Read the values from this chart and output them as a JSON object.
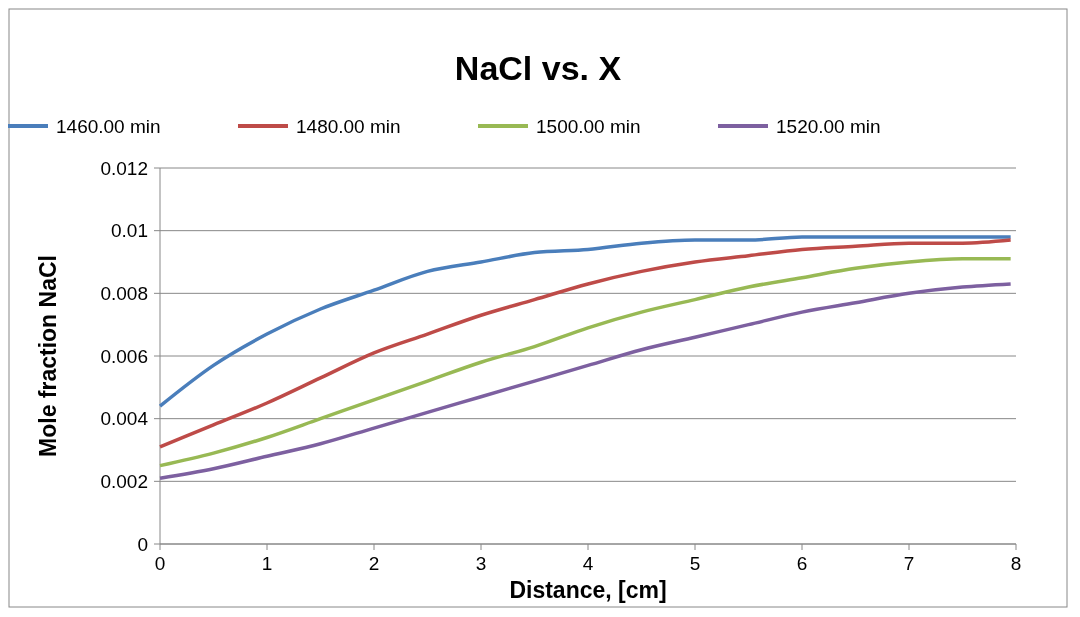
{
  "chart_data": {
    "type": "line",
    "title": "NaCl vs. X",
    "xlabel": "Distance, [cm]",
    "ylabel": "Mole fraction NaCl",
    "x": [
      0,
      0.5,
      1,
      1.5,
      2,
      2.5,
      3,
      3.5,
      4,
      4.5,
      5,
      5.5,
      6,
      6.5,
      7,
      7.5,
      7.95
    ],
    "series": [
      {
        "name": "1460.00 min",
        "color": "#4a7ebb",
        "values": [
          0.0044,
          0.0057,
          0.0067,
          0.0075,
          0.0081,
          0.0087,
          0.009,
          0.0093,
          0.0094,
          0.0096,
          0.0097,
          0.0097,
          0.0098,
          0.0098,
          0.0098,
          0.0098,
          0.0098
        ]
      },
      {
        "name": "1480.00 min",
        "color": "#be4b48",
        "values": [
          0.0031,
          0.0038,
          0.0045,
          0.0053,
          0.0061,
          0.0067,
          0.0073,
          0.0078,
          0.0083,
          0.0087,
          0.009,
          0.0092,
          0.0094,
          0.0095,
          0.0096,
          0.0096,
          0.0097
        ]
      },
      {
        "name": "1500.00 min",
        "color": "#98b954",
        "values": [
          0.0025,
          0.0029,
          0.0034,
          0.004,
          0.0046,
          0.0052,
          0.0058,
          0.0063,
          0.0069,
          0.0074,
          0.0078,
          0.0082,
          0.0085,
          0.0088,
          0.009,
          0.0091,
          0.0091
        ]
      },
      {
        "name": "1520.00 min",
        "color": "#7d60a0",
        "values": [
          0.0021,
          0.0024,
          0.0028,
          0.0032,
          0.0037,
          0.0042,
          0.0047,
          0.0052,
          0.0057,
          0.0062,
          0.0066,
          0.007,
          0.0074,
          0.0077,
          0.008,
          0.0082,
          0.0083
        ]
      }
    ],
    "xlim": [
      0,
      8
    ],
    "xticks": [
      0,
      1,
      2,
      3,
      4,
      5,
      6,
      7,
      8
    ],
    "ylim": [
      0,
      0.012
    ],
    "yticks": [
      0,
      0.002,
      0.004,
      0.006,
      0.008,
      0.01,
      0.012
    ],
    "grid": "y",
    "legend": "top",
    "marker": "none",
    "line_style": "solid"
  }
}
